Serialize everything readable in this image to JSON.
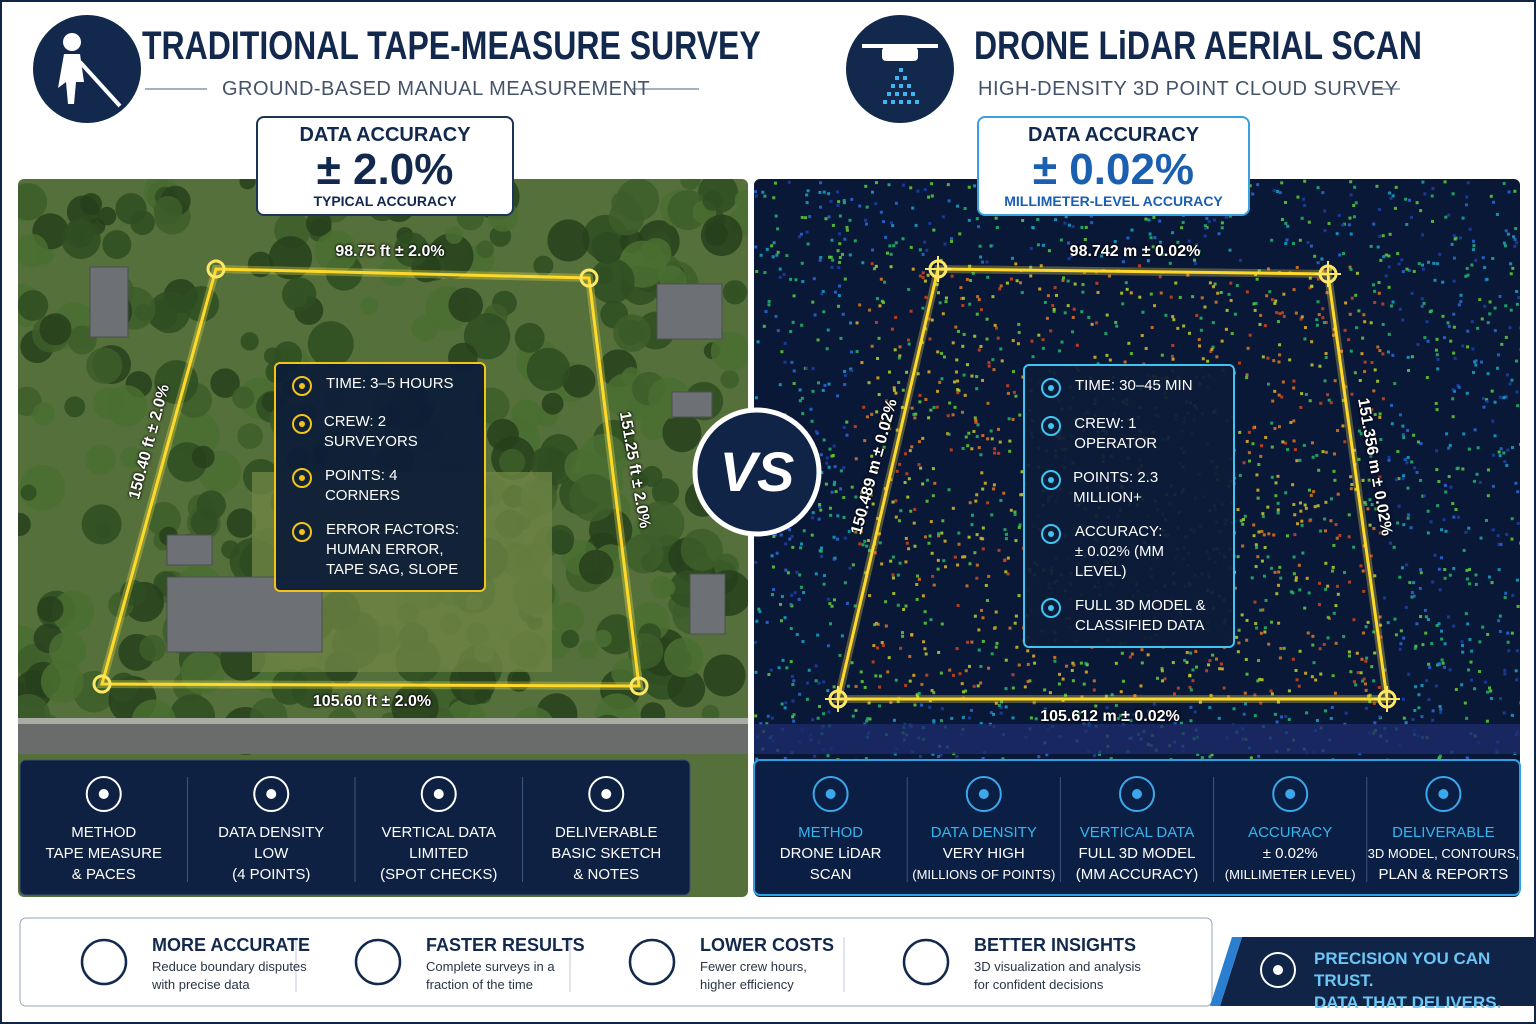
{
  "left": {
    "title": "TRADITIONAL TAPE-MEASURE SURVEY",
    "subtitle": "GROUND-BASED MANUAL MEASUREMENT",
    "accuracy": {
      "label": "DATA ACCURACY",
      "value": "± 2.0%",
      "note": "TYPICAL ACCURACY"
    },
    "edges": {
      "top": "98.75 ft ± 2.0%",
      "left": "150.40 ft ± 2.0%",
      "right": "151.25 ft ± 2.0%",
      "bottom": "105.60 ft ± 2.0%"
    },
    "facts": [
      [
        "TIME: 3–5 HOURS"
      ],
      [
        "CREW: 2 SURVEYORS"
      ],
      [
        "POINTS:  4 CORNERS"
      ],
      [
        "ERROR FACTORS:",
        "HUMAN ERROR,",
        "TAPE SAG, SLOPE"
      ]
    ],
    "specs": [
      {
        "label": "METHOD",
        "value": [
          "TAPE MEASURE",
          "& PACES"
        ]
      },
      {
        "label": "DATA DENSITY",
        "value": [
          "LOW",
          "(4 POINTS)"
        ]
      },
      {
        "label": "VERTICAL DATA",
        "value": [
          "LIMITED",
          "(SPOT CHECKS)"
        ]
      },
      {
        "label": "DELIVERABLE",
        "value": [
          "BASIC SKETCH",
          "& NOTES"
        ]
      }
    ]
  },
  "vs": "VS",
  "right": {
    "title": "DRONE LiDAR AERIAL SCAN",
    "subtitle": "HIGH-DENSITY 3D POINT CLOUD SURVEY",
    "accuracy": {
      "label": "DATA ACCURACY",
      "value": "± 0.02%",
      "note": "MILLIMETER-LEVEL ACCURACY"
    },
    "edges": {
      "top": "98.742 m ± 0.02%",
      "left": "150.489 m ± 0.02%",
      "right": "151.356 m ± 0.02%",
      "bottom": "105.612 m ± 0.02%"
    },
    "facts": [
      [
        "TIME: 30–45 MIN"
      ],
      [
        "CREW: 1 OPERATOR"
      ],
      [
        "POINTS: 2.3 MILLION+"
      ],
      [
        "ACCURACY:",
        "± 0.02% (MM LEVEL)"
      ],
      [
        "FULL 3D MODEL &",
        "CLASSIFIED DATA"
      ]
    ],
    "specs": [
      {
        "label": "METHOD",
        "value": [
          "DRONE LiDAR",
          "SCAN"
        ]
      },
      {
        "label": "DATA DENSITY",
        "value": [
          "VERY HIGH",
          "(MILLIONS OF POINTS)"
        ]
      },
      {
        "label": "VERTICAL DATA",
        "value": [
          "FULL 3D MODEL",
          "(MM ACCURACY)"
        ]
      },
      {
        "label": "ACCURACY",
        "value": [
          "± 0.02%",
          "(MILLIMETER LEVEL)"
        ]
      },
      {
        "label": "DELIVERABLE",
        "value": [
          "3D MODEL, CONTOURS,",
          "PLAN & REPORTS"
        ]
      }
    ]
  },
  "benefits": [
    {
      "title": "MORE ACCURATE",
      "text": [
        "Reduce boundary disputes",
        "with precise data"
      ]
    },
    {
      "title": "FASTER RESULTS",
      "text": [
        "Complete surveys in a",
        "fraction of the time"
      ]
    },
    {
      "title": "LOWER COSTS",
      "text": [
        "Fewer crew hours,",
        "higher efficiency"
      ]
    },
    {
      "title": "BETTER INSIGHTS",
      "text": [
        "3D visualization and analysis",
        "for confident decisions"
      ]
    }
  ],
  "tagline": [
    "PRECISION YOU CAN TRUST.",
    "DATA THAT DELIVERS."
  ]
}
